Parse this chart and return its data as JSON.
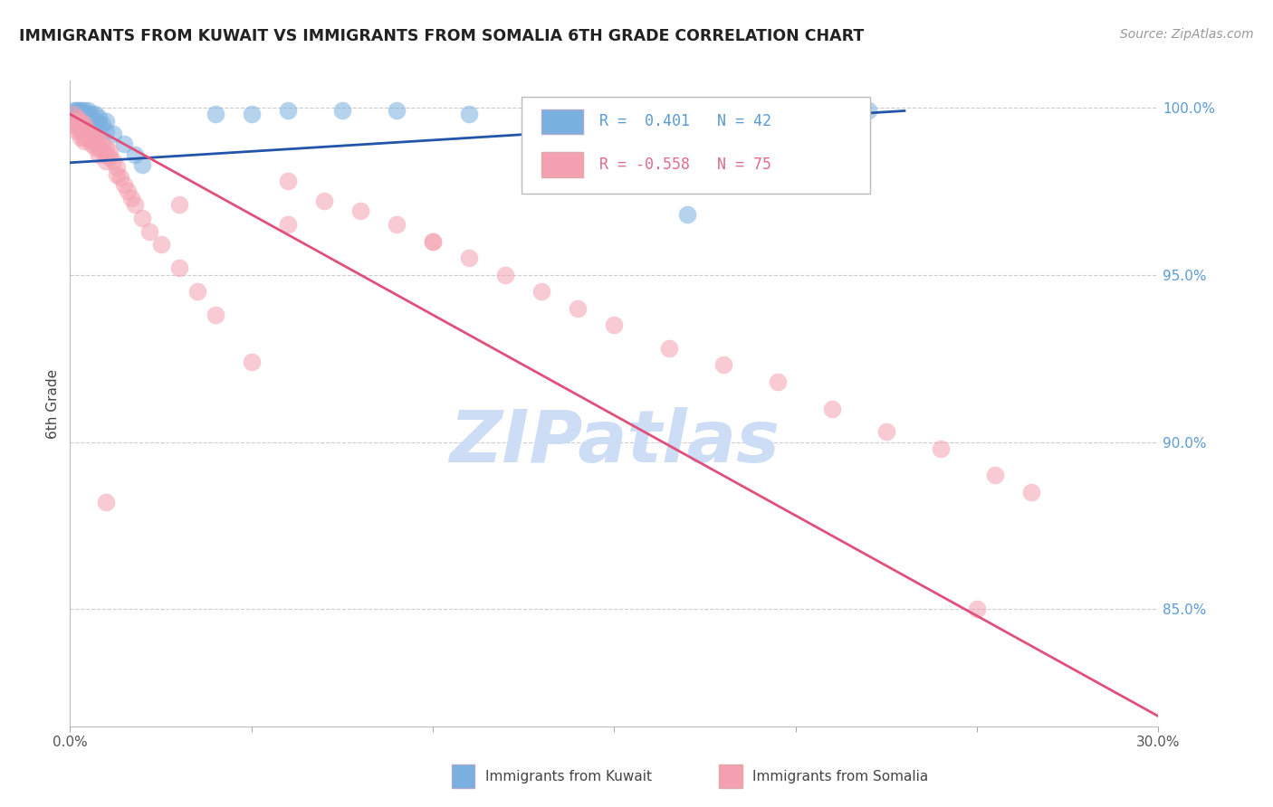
{
  "title": "IMMIGRANTS FROM KUWAIT VS IMMIGRANTS FROM SOMALIA 6TH GRADE CORRELATION CHART",
  "source": "Source: ZipAtlas.com",
  "ylabel": "6th Grade",
  "xlim": [
    0.0,
    0.3
  ],
  "ylim": [
    0.815,
    1.008
  ],
  "y_ticks_right": [
    0.85,
    0.9,
    0.95,
    1.0
  ],
  "y_tick_labels_right": [
    "85.0%",
    "90.0%",
    "95.0%",
    "100.0%"
  ],
  "kuwait_R": 0.401,
  "kuwait_N": 42,
  "somalia_R": -0.558,
  "somalia_N": 75,
  "kuwait_color": "#7ab0e0",
  "somalia_color": "#f4a0b0",
  "kuwait_line_color": "#2255aa",
  "somalia_line_color": "#e0507a",
  "watermark": "ZIPatlas",
  "watermark_color": "#ccddf5",
  "kuwait_scatter_x": [
    0.001,
    0.001,
    0.002,
    0.002,
    0.002,
    0.002,
    0.003,
    0.003,
    0.003,
    0.003,
    0.004,
    0.004,
    0.004,
    0.004,
    0.005,
    0.005,
    0.005,
    0.006,
    0.006,
    0.007,
    0.007,
    0.008,
    0.008,
    0.009,
    0.01,
    0.01,
    0.012,
    0.015,
    0.018,
    0.02,
    0.04,
    0.05,
    0.06,
    0.075,
    0.09,
    0.11,
    0.13,
    0.15,
    0.16,
    0.17,
    0.2,
    0.22
  ],
  "kuwait_scatter_y": [
    0.998,
    0.999,
    0.997,
    0.998,
    0.999,
    0.999,
    0.997,
    0.998,
    0.999,
    0.999,
    0.996,
    0.997,
    0.998,
    0.999,
    0.997,
    0.998,
    0.999,
    0.996,
    0.998,
    0.996,
    0.998,
    0.995,
    0.997,
    0.995,
    0.993,
    0.996,
    0.992,
    0.989,
    0.986,
    0.983,
    0.998,
    0.998,
    0.999,
    0.999,
    0.999,
    0.998,
    0.997,
    0.997,
    0.995,
    0.968,
    0.999,
    0.999
  ],
  "somalia_scatter_x": [
    0.001,
    0.001,
    0.001,
    0.002,
    0.002,
    0.002,
    0.002,
    0.003,
    0.003,
    0.003,
    0.003,
    0.003,
    0.004,
    0.004,
    0.004,
    0.004,
    0.004,
    0.005,
    0.005,
    0.005,
    0.006,
    0.006,
    0.006,
    0.006,
    0.007,
    0.007,
    0.007,
    0.008,
    0.008,
    0.008,
    0.009,
    0.009,
    0.01,
    0.01,
    0.01,
    0.011,
    0.011,
    0.012,
    0.013,
    0.013,
    0.014,
    0.015,
    0.016,
    0.017,
    0.018,
    0.02,
    0.022,
    0.025,
    0.03,
    0.035,
    0.04,
    0.05,
    0.06,
    0.07,
    0.08,
    0.09,
    0.1,
    0.11,
    0.12,
    0.13,
    0.14,
    0.15,
    0.165,
    0.18,
    0.195,
    0.21,
    0.225,
    0.24,
    0.255,
    0.265,
    0.03,
    0.06,
    0.1,
    0.25,
    0.01
  ],
  "somalia_scatter_y": [
    0.998,
    0.996,
    0.995,
    0.997,
    0.996,
    0.994,
    0.993,
    0.996,
    0.995,
    0.994,
    0.993,
    0.991,
    0.995,
    0.994,
    0.993,
    0.991,
    0.99,
    0.993,
    0.992,
    0.991,
    0.992,
    0.991,
    0.99,
    0.989,
    0.991,
    0.99,
    0.988,
    0.99,
    0.988,
    0.986,
    0.989,
    0.987,
    0.988,
    0.986,
    0.984,
    0.987,
    0.985,
    0.984,
    0.982,
    0.98,
    0.979,
    0.977,
    0.975,
    0.973,
    0.971,
    0.967,
    0.963,
    0.959,
    0.952,
    0.945,
    0.938,
    0.924,
    0.978,
    0.972,
    0.969,
    0.965,
    0.96,
    0.955,
    0.95,
    0.945,
    0.94,
    0.935,
    0.928,
    0.923,
    0.918,
    0.91,
    0.903,
    0.898,
    0.89,
    0.885,
    0.971,
    0.965,
    0.96,
    0.85,
    0.882
  ],
  "background_color": "#ffffff",
  "grid_color": "#cccccc",
  "legend_box_color": "#f8f8f8",
  "legend_border_color": "#cccccc"
}
